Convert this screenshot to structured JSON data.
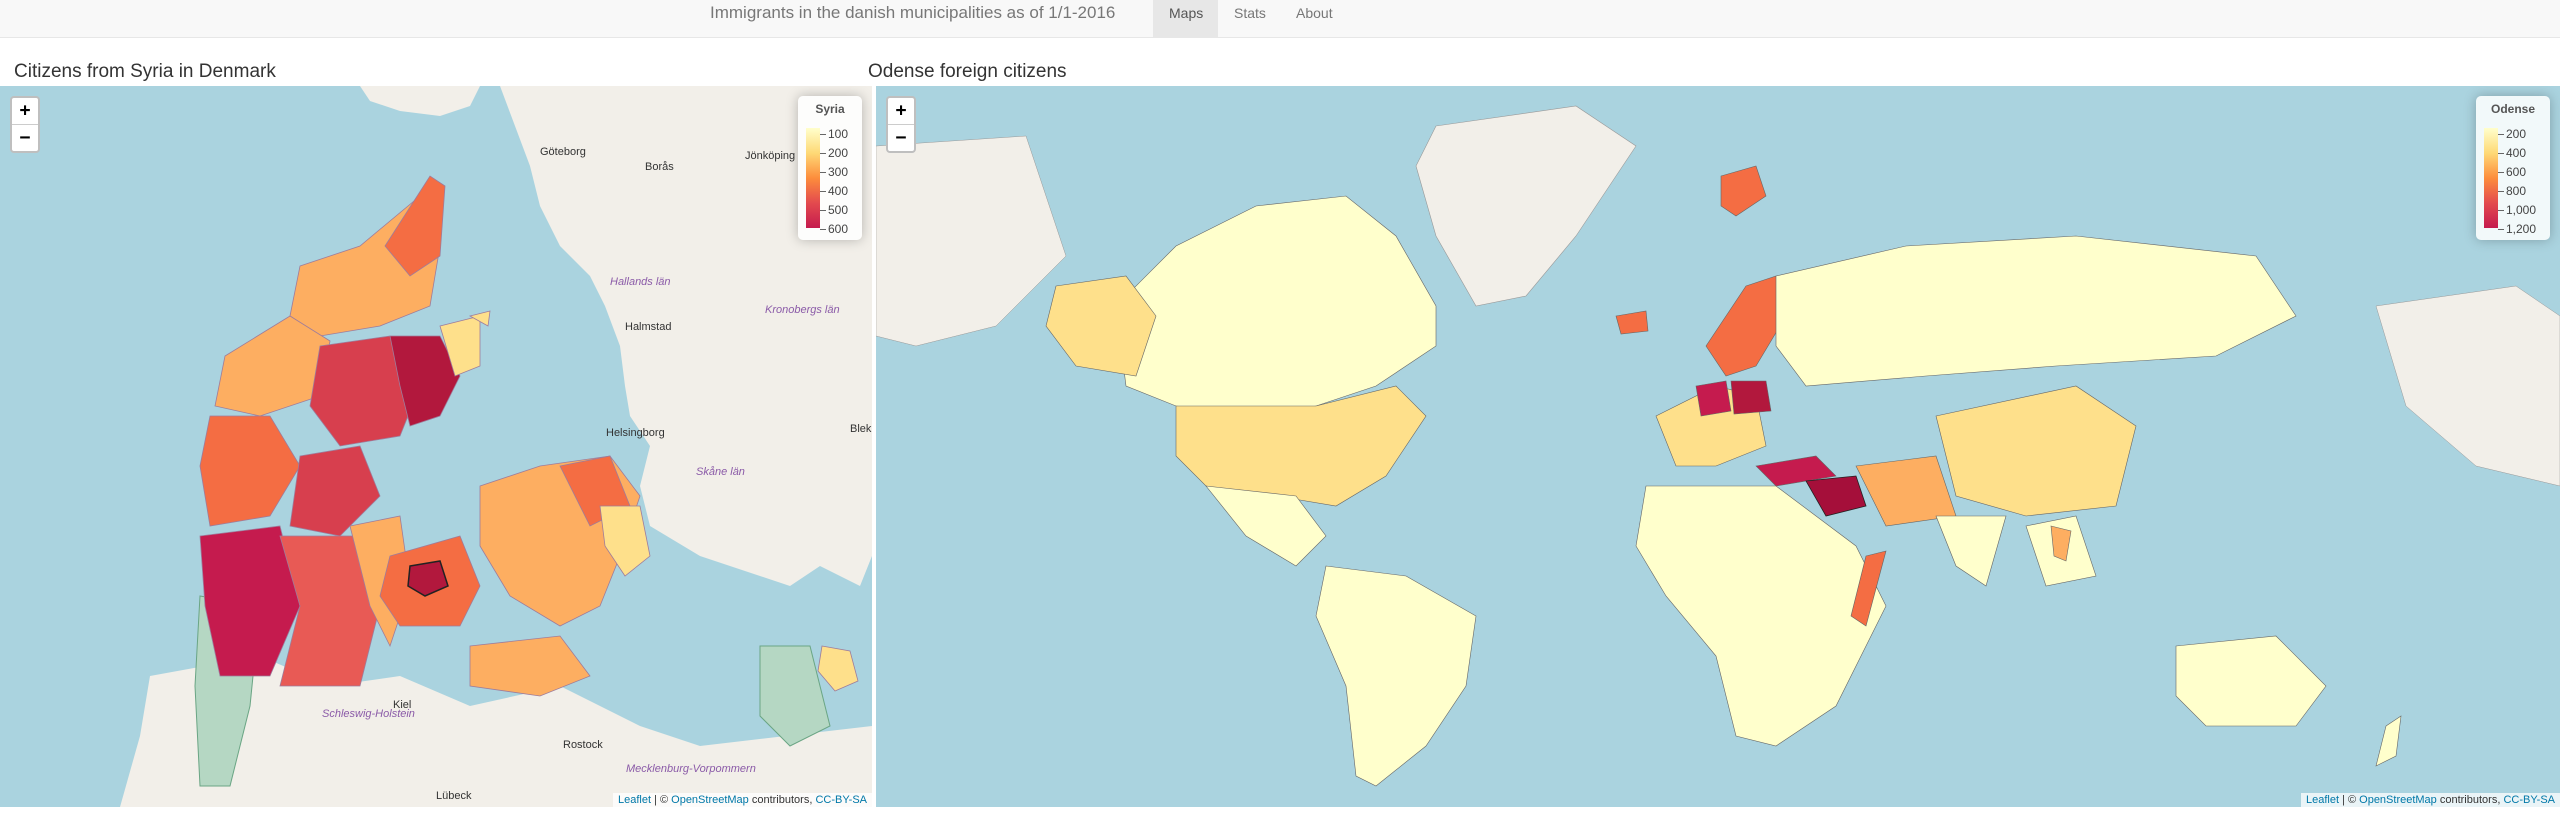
{
  "navbar": {
    "brand": "Immigrants in the danish municipalities as of 1/1-2016",
    "tabs": [
      {
        "label": "Maps",
        "active": true
      },
      {
        "label": "Stats",
        "active": false
      },
      {
        "label": "About",
        "active": false
      }
    ]
  },
  "left_panel": {
    "title": "Citizens from Syria in Denmark",
    "zoom_in": "+",
    "zoom_out": "−",
    "legend": {
      "title": "Syria",
      "ticks": [
        "100",
        "200",
        "300",
        "400",
        "500",
        "600"
      ],
      "color_low": "#ffffcc",
      "color_mid": "#fd8d3c",
      "color_high": "#c51b4e"
    },
    "place_labels": [
      "Göteborg",
      "Borås",
      "Jönköping",
      "Hallands län",
      "Kronobergs län",
      "Halmstad",
      "Helsingborg",
      "Skåne län",
      "Blek",
      "Kiel",
      "Schleswig-Holstein",
      "Rostock",
      "Mecklenburg-Vorpommern",
      "Lübeck"
    ]
  },
  "right_panel": {
    "title": "Odense foreign citizens",
    "zoom_in": "+",
    "zoom_out": "−",
    "legend": {
      "title": "Odense",
      "ticks": [
        "200",
        "400",
        "600",
        "800",
        "1,000",
        "1,200"
      ],
      "color_low": "#ffffcc",
      "color_mid": "#fd8d3c",
      "color_high": "#c51b4e"
    }
  },
  "attribution": {
    "leaflet": "Leaflet",
    "sep": " | © ",
    "osm": "OpenStreetMap",
    "contributors": " contributors, ",
    "license": "CC-BY-SA"
  },
  "colors": {
    "water": "#aad3df",
    "land": "#f2efe9",
    "low": "#ffffcc",
    "mid": "#fd8d3c",
    "high": "#c51b4e"
  }
}
